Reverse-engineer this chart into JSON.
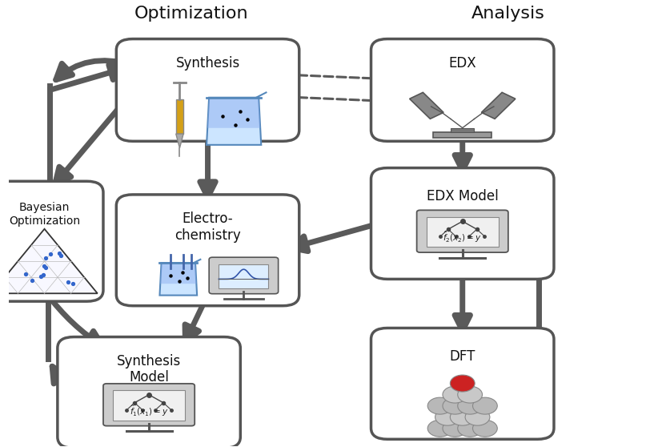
{
  "title_optimization": "Optimization",
  "title_analysis": "Analysis",
  "bg_color": "#ffffff",
  "box_color": "#ffffff",
  "box_edge_color": "#555555",
  "arrow_color": "#5a5a5a",
  "text_color": "#111111",
  "boxes": {
    "synthesis": [
      0.305,
      0.8,
      0.23,
      0.18
    ],
    "bayesian": [
      0.055,
      0.46,
      0.13,
      0.22
    ],
    "electrochem": [
      0.305,
      0.44,
      0.23,
      0.2
    ],
    "synthmodel": [
      0.215,
      0.12,
      0.23,
      0.2
    ],
    "edx": [
      0.695,
      0.8,
      0.23,
      0.18
    ],
    "edxmodel": [
      0.695,
      0.5,
      0.23,
      0.2
    ],
    "dft": [
      0.695,
      0.14,
      0.23,
      0.2
    ]
  },
  "labels": {
    "synthesis": [
      "Synthesis",
      0.305,
      0.877,
      12
    ],
    "bayesian": [
      "Bayesian\nOptimization",
      0.055,
      0.548,
      10
    ],
    "electrochem": [
      "Electro-\nchemistry",
      0.305,
      0.527,
      12
    ],
    "synthmodel": [
      "Synthesis\nModel",
      0.215,
      0.207,
      12
    ],
    "edx": [
      "EDX",
      0.695,
      0.877,
      12
    ],
    "edxmodel": [
      "EDX Model",
      0.695,
      0.577,
      12
    ],
    "dft": [
      "DFT",
      0.695,
      0.217,
      12
    ]
  }
}
